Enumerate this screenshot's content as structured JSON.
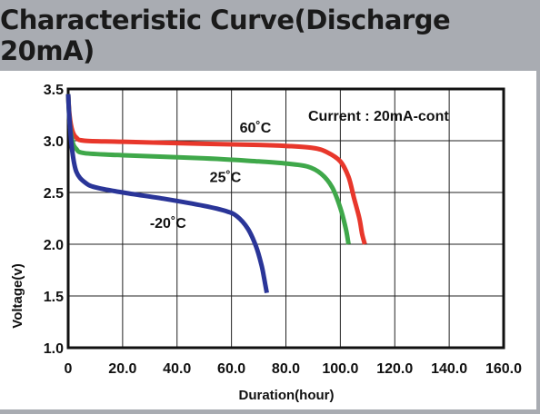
{
  "header": {
    "title": "Characteristic Curve(Discharge 20mA)"
  },
  "chart_data": {
    "type": "line",
    "title": "Characteristic Curve(Discharge 20mA)",
    "xlabel": "Duration(hour)",
    "ylabel": "Voltage(v)",
    "xlim": [
      0,
      160
    ],
    "ylim": [
      1.0,
      3.5
    ],
    "x_ticks": [
      "0",
      "20.0",
      "40.0",
      "60.0",
      "80.0",
      "100.0",
      "120.0",
      "140.0",
      "160.0"
    ],
    "y_ticks": [
      "1.0",
      "1.5",
      "2.0",
      "2.5",
      "3.0",
      "3.5"
    ],
    "grid": true,
    "annotation": "Current : 20mA-cont",
    "series": [
      {
        "name": "60˚C",
        "color": "#e8372b",
        "points": [
          [
            0,
            3.45
          ],
          [
            0.5,
            3.25
          ],
          [
            1.5,
            3.1
          ],
          [
            3,
            3.03
          ],
          [
            6,
            3.0
          ],
          [
            20,
            2.99
          ],
          [
            50,
            2.97
          ],
          [
            70,
            2.96
          ],
          [
            80,
            2.95
          ],
          [
            90,
            2.93
          ],
          [
            95,
            2.89
          ],
          [
            100,
            2.8
          ],
          [
            103,
            2.65
          ],
          [
            105,
            2.45
          ],
          [
            107,
            2.25
          ],
          [
            108,
            2.1
          ],
          [
            109,
            2.0
          ]
        ]
      },
      {
        "name": "25˚C",
        "color": "#3fa84a",
        "points": [
          [
            0,
            3.45
          ],
          [
            0.5,
            3.2
          ],
          [
            1.5,
            3.0
          ],
          [
            3,
            2.92
          ],
          [
            6,
            2.88
          ],
          [
            20,
            2.86
          ],
          [
            50,
            2.83
          ],
          [
            70,
            2.8
          ],
          [
            80,
            2.78
          ],
          [
            88,
            2.75
          ],
          [
            93,
            2.68
          ],
          [
            97,
            2.55
          ],
          [
            100,
            2.35
          ],
          [
            102,
            2.15
          ],
          [
            103,
            2.0
          ]
        ]
      },
      {
        "name": "-20˚C",
        "color": "#2a3598",
        "points": [
          [
            0,
            3.45
          ],
          [
            0.5,
            3.2
          ],
          [
            1.5,
            2.9
          ],
          [
            3,
            2.7
          ],
          [
            6,
            2.6
          ],
          [
            10,
            2.55
          ],
          [
            20,
            2.5
          ],
          [
            35,
            2.44
          ],
          [
            50,
            2.37
          ],
          [
            58,
            2.32
          ],
          [
            62,
            2.27
          ],
          [
            66,
            2.15
          ],
          [
            69,
            1.98
          ],
          [
            71,
            1.8
          ],
          [
            72,
            1.67
          ],
          [
            73,
            1.53
          ]
        ]
      }
    ],
    "labels": [
      {
        "text": "60˚C",
        "x": 63,
        "y": 3.08
      },
      {
        "text": "25˚C",
        "x": 52,
        "y": 2.6
      },
      {
        "text": "-20˚C",
        "x": 30,
        "y": 2.16
      }
    ]
  }
}
